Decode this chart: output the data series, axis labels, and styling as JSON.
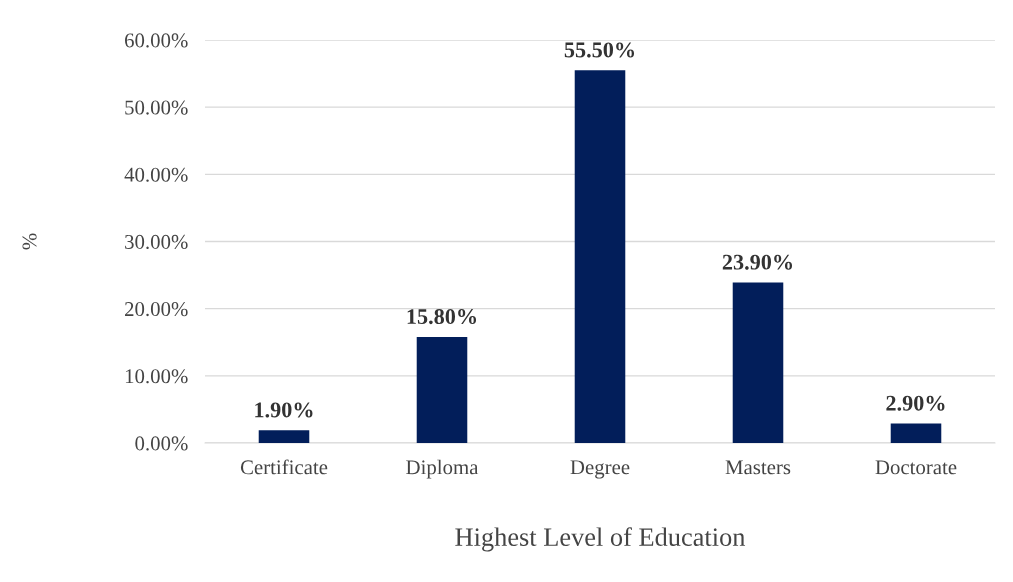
{
  "chart_data": {
    "type": "bar",
    "xlabel": "Highest Level of Education",
    "ylabel": "%",
    "categories": [
      "Certificate",
      "Diploma",
      "Degree",
      "Masters",
      "Doctorate"
    ],
    "values": [
      1.9,
      15.8,
      55.5,
      23.9,
      2.9
    ],
    "value_labels": [
      "1.90%",
      "15.80%",
      "55.50%",
      "23.90%",
      "2.90%"
    ],
    "color": "#021e5a",
    "ylim": [
      0,
      60
    ],
    "yticks": [
      {
        "value": 0,
        "label": "0.00%"
      },
      {
        "value": 10,
        "label": "10.00%"
      },
      {
        "value": 20,
        "label": "20.00%"
      },
      {
        "value": 30,
        "label": "30.00%"
      },
      {
        "value": 40,
        "label": "40.00%"
      },
      {
        "value": 50,
        "label": "50.00%"
      },
      {
        "value": 60,
        "label": "60.00%"
      }
    ],
    "grid": "y",
    "legend": false
  }
}
